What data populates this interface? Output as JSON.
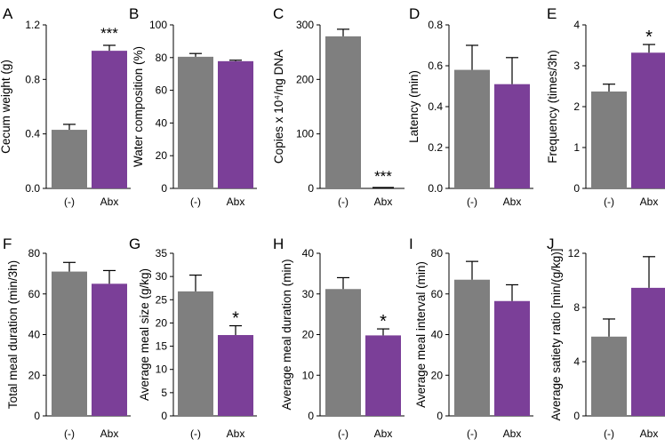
{
  "bar_colors": {
    "control": "#7f7f7f",
    "abx": "#7b3f98"
  },
  "chart_data": [
    {
      "panel": "A",
      "type": "bar",
      "categories": [
        "(-)",
        "Abx"
      ],
      "values": [
        0.43,
        1.01
      ],
      "errors": [
        0.04,
        0.04
      ],
      "ylabel": "Cecum weight  (g)",
      "ylim": [
        0,
        1.2
      ],
      "yticks": [
        "0.0",
        "0.4",
        "0.8",
        "1.2"
      ],
      "significance": [
        "",
        "***"
      ]
    },
    {
      "panel": "B",
      "type": "bar",
      "categories": [
        "(-)",
        "Abx"
      ],
      "values": [
        80.5,
        77.8
      ],
      "errors": [
        2.0,
        0.6
      ],
      "ylabel": "Water composition  (%)",
      "ylim": [
        0,
        100
      ],
      "yticks": [
        "0",
        "20",
        "40",
        "60",
        "80",
        "100"
      ],
      "significance": [
        "",
        ""
      ]
    },
    {
      "panel": "C",
      "type": "bar",
      "categories": [
        "(-)",
        "Abx"
      ],
      "values": [
        279,
        0.3
      ],
      "errors": [
        13,
        0
      ],
      "ylabel": "Copies x 10⁴/ng  DNA",
      "ylim": [
        0,
        300
      ],
      "yticks": [
        "0",
        "100",
        "200",
        "300"
      ],
      "significance": [
        "",
        "***"
      ]
    },
    {
      "panel": "D",
      "type": "bar",
      "categories": [
        "(-)",
        "Abx"
      ],
      "values": [
        0.58,
        0.51
      ],
      "errors": [
        0.12,
        0.13
      ],
      "ylabel": "Latency (min)",
      "ylim": [
        0,
        0.8
      ],
      "yticks": [
        "0.0",
        "0.2",
        "0.4",
        "0.6",
        "0.8"
      ],
      "significance": [
        "",
        ""
      ]
    },
    {
      "panel": "E",
      "type": "bar",
      "categories": [
        "(-)",
        "Abx"
      ],
      "values": [
        2.37,
        3.32
      ],
      "errors": [
        0.18,
        0.2
      ],
      "ylabel": "Frequency  (times/3h)",
      "ylim": [
        0,
        4
      ],
      "yticks": [
        "0",
        "1",
        "2",
        "3",
        "4"
      ],
      "significance": [
        "",
        "*"
      ]
    },
    {
      "panel": "F",
      "type": "bar",
      "categories": [
        "(-)",
        "Abx"
      ],
      "values": [
        71,
        65
      ],
      "errors": [
        4.5,
        6.5
      ],
      "ylabel": "Total meal duration  (min/3h)",
      "ylim": [
        0,
        80
      ],
      "yticks": [
        "0",
        "20",
        "40",
        "60",
        "80"
      ],
      "significance": [
        "",
        ""
      ]
    },
    {
      "panel": "G",
      "type": "bar",
      "categories": [
        "(-)",
        "Abx"
      ],
      "values": [
        26.8,
        17.4
      ],
      "errors": [
        3.5,
        2.0
      ],
      "ylabel": "Average meal size (g/kg)",
      "ylim": [
        0,
        35
      ],
      "yticks": [
        "0",
        "5",
        "10",
        "15",
        "20",
        "25",
        "30",
        "35"
      ],
      "significance": [
        "",
        "*"
      ]
    },
    {
      "panel": "H",
      "type": "bar",
      "categories": [
        "(-)",
        "Abx"
      ],
      "values": [
        31.2,
        19.8
      ],
      "errors": [
        2.8,
        1.6
      ],
      "ylabel": "Average meal duration  (min)",
      "ylim": [
        0,
        40
      ],
      "yticks": [
        "0",
        "10",
        "20",
        "30",
        "40"
      ],
      "significance": [
        "",
        "*"
      ]
    },
    {
      "panel": "I",
      "type": "bar",
      "categories": [
        "(-)",
        "Abx"
      ],
      "values": [
        67,
        56.5
      ],
      "errors": [
        9,
        8
      ],
      "ylabel": "Average meal interval  (min)",
      "ylim": [
        0,
        80
      ],
      "yticks": [
        "0",
        "20",
        "40",
        "60",
        "80"
      ],
      "significance": [
        "",
        ""
      ]
    },
    {
      "panel": "J",
      "type": "bar",
      "categories": [
        "(-)",
        "Abx"
      ],
      "values": [
        5.85,
        9.45
      ],
      "errors": [
        1.3,
        2.3
      ],
      "ylabel": "Average satiety ratio  [min/(g/kg)]",
      "ylim": [
        0,
        12
      ],
      "yticks": [
        "0",
        "4",
        "8",
        "12"
      ],
      "significance": [
        "",
        ""
      ]
    }
  ]
}
